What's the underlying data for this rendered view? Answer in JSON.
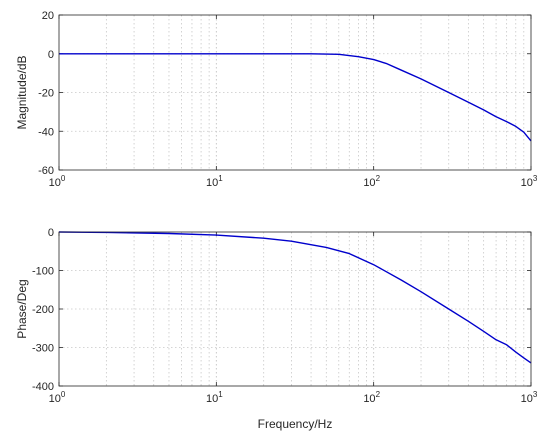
{
  "chart_data": [
    {
      "type": "line",
      "xlabel": "",
      "ylabel": "Magnitude/dB",
      "x_scale": "log",
      "xlim": [
        1,
        1000
      ],
      "ylim": [
        -60,
        20
      ],
      "grid": true,
      "x_ticks": [
        {
          "base": "10",
          "exp": "0",
          "value": 1
        },
        {
          "base": "10",
          "exp": "1",
          "value": 10
        },
        {
          "base": "10",
          "exp": "2",
          "value": 100
        },
        {
          "base": "10",
          "exp": "3",
          "value": 1000
        }
      ],
      "y_ticks": [
        "20",
        "0",
        "-20",
        "-40",
        "-60"
      ],
      "series": [
        {
          "color": "#0000cc",
          "x": [
            1,
            2,
            5,
            10,
            20,
            40,
            60,
            80,
            100,
            120,
            150,
            200,
            300,
            400,
            500,
            600,
            700,
            800,
            900,
            1000
          ],
          "y": [
            0,
            0,
            0,
            0,
            0,
            0,
            -0.3,
            -1.5,
            -3,
            -5,
            -8.5,
            -13,
            -20,
            -25,
            -29,
            -32.5,
            -35,
            -37.5,
            -40.5,
            -45
          ]
        }
      ]
    },
    {
      "type": "line",
      "xlabel": "Frequency/Hz",
      "ylabel": "Phase/Deg",
      "x_scale": "log",
      "xlim": [
        1,
        1000
      ],
      "ylim": [
        -400,
        0
      ],
      "grid": true,
      "x_ticks": [
        {
          "base": "10",
          "exp": "0",
          "value": 1
        },
        {
          "base": "10",
          "exp": "1",
          "value": 10
        },
        {
          "base": "10",
          "exp": "2",
          "value": 100
        },
        {
          "base": "10",
          "exp": "3",
          "value": 1000
        }
      ],
      "y_ticks": [
        "0",
        "-100",
        "-200",
        "-300",
        "-400"
      ],
      "series": [
        {
          "color": "#0000cc",
          "x": [
            1,
            2,
            5,
            10,
            20,
            30,
            50,
            70,
            100,
            150,
            200,
            300,
            400,
            500,
            600,
            700,
            800,
            900,
            1000
          ],
          "y": [
            0,
            -1,
            -4,
            -8,
            -16,
            -24,
            -40,
            -56,
            -85,
            -125,
            -155,
            -200,
            -232,
            -258,
            -280,
            -293,
            -312,
            -327,
            -340
          ]
        }
      ]
    }
  ]
}
